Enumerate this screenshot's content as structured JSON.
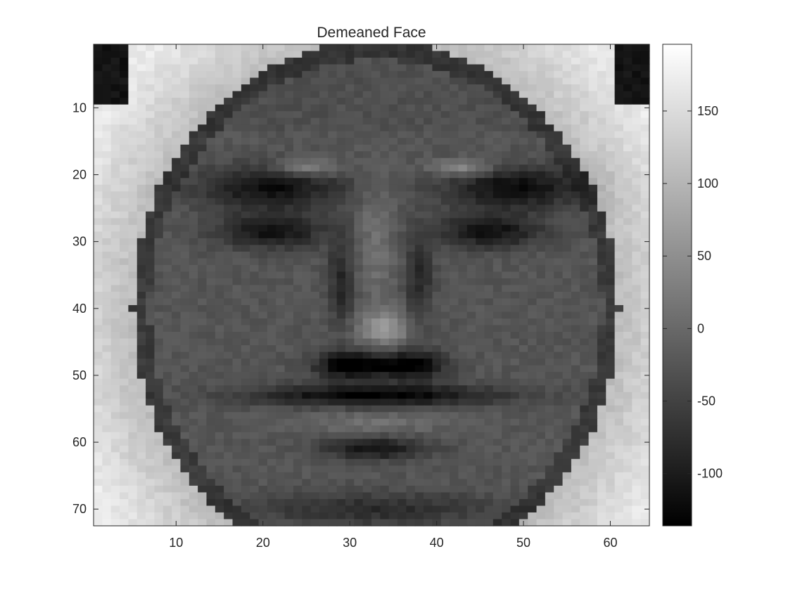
{
  "chart_data": {
    "type": "heatmap",
    "title": "Demeaned Face",
    "xlabel": "",
    "ylabel": "",
    "colormap": "gray",
    "image_size": {
      "rows": 72,
      "cols": 64
    },
    "xlim": [
      0.5,
      64.5
    ],
    "ylim": [
      0.5,
      72.5
    ],
    "y_direction": "reverse",
    "xticks": [
      10,
      20,
      30,
      40,
      50,
      60
    ],
    "yticks": [
      10,
      20,
      30,
      40,
      50,
      60,
      70
    ],
    "colorbar": {
      "range": [
        -136,
        196
      ],
      "ticks": [
        -100,
        -50,
        0,
        50,
        100,
        150
      ]
    },
    "grid": false,
    "description_values": "demeaned pixel intensities of a frontal face image; background regions at left/right edges are bright (~+100 to +190), eyebrows, eye sockets, nostrils and mouth line are dark (~-80 to -130), skin near 0 to -30"
  }
}
